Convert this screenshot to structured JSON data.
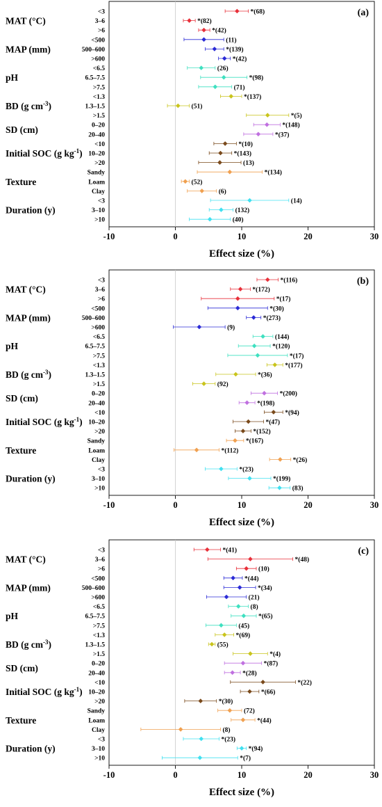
{
  "chart_data": [
    {
      "type": "forest",
      "panel": "(a)",
      "xlabel": "Effect size (%)",
      "xlim": [
        -10,
        30
      ],
      "xticks": [
        -10,
        0,
        10,
        20,
        30
      ],
      "groups": [
        {
          "label": "MAT (°C)",
          "color": "#e8303a",
          "rows": [
            {
              "cat": "<3",
              "mean": 9.3,
              "lo": 7.5,
              "hi": 11.0,
              "ann": "*(68)"
            },
            {
              "cat": "3–6",
              "mean": 2.1,
              "lo": 1.2,
              "hi": 3.0,
              "ann": "*(82)"
            },
            {
              "cat": ">6",
              "mean": 4.3,
              "lo": 3.5,
              "hi": 5.2,
              "ann": "*(42)"
            }
          ]
        },
        {
          "label": "MAP (mm)",
          "color": "#2b2bd6",
          "rows": [
            {
              "cat": "<500",
              "mean": 4.3,
              "lo": 1.3,
              "hi": 7.3,
              "ann": "(11)"
            },
            {
              "cat": "500–600",
              "mean": 5.9,
              "lo": 4.5,
              "hi": 7.3,
              "ann": "*(139)"
            },
            {
              "cat": ">600",
              "mean": 7.4,
              "lo": 6.5,
              "hi": 8.3,
              "ann": "*(42)"
            }
          ]
        },
        {
          "label": "pH",
          "color": "#3fe0c0",
          "rows": [
            {
              "cat": "<6.5",
              "mean": 3.9,
              "lo": 1.8,
              "hi": 6.0,
              "ann": "(26)"
            },
            {
              "cat": "6.5–7.5",
              "mean": 7.3,
              "lo": 3.8,
              "hi": 10.8,
              "ann": "*(98)"
            },
            {
              "cat": ">7.5",
              "mean": 6.0,
              "lo": 3.5,
              "hi": 8.5,
              "ann": "(71)"
            }
          ]
        },
        {
          "label": "BD (g cm<sup>-3</sup>)",
          "color": "#c9c41c",
          "rows": [
            {
              "cat": "<1.3",
              "mean": 8.4,
              "lo": 6.8,
              "hi": 10.0,
              "ann": "*(137)"
            },
            {
              "cat": "1.3–1.5",
              "mean": 0.4,
              "lo": -1.2,
              "hi": 2.1,
              "ann": "(51)"
            },
            {
              "cat": ">1.5",
              "mean": 13.9,
              "lo": 10.7,
              "hi": 17.1,
              "ann": "*(5)"
            }
          ]
        },
        {
          "label": "SD (cm)",
          "color": "#c070e0",
          "rows": [
            {
              "cat": "0–20",
              "mean": 13.8,
              "lo": 11.8,
              "hi": 15.8,
              "ann": "*(148)"
            },
            {
              "cat": "20–40",
              "mean": 12.5,
              "lo": 10.3,
              "hi": 14.7,
              "ann": "*(37)"
            }
          ]
        },
        {
          "label": "Initial SOC (g kg<sup>-1</sup>)",
          "color": "#7a4a1c",
          "rows": [
            {
              "cat": "<10",
              "mean": 7.5,
              "lo": 5.8,
              "hi": 9.2,
              "ann": "*(10)"
            },
            {
              "cat": "10–20",
              "mean": 6.8,
              "lo": 5.1,
              "hi": 8.5,
              "ann": "*(143)"
            },
            {
              "cat": ">20",
              "mean": 6.7,
              "lo": 3.5,
              "hi": 9.9,
              "ann": "(13)"
            }
          ]
        },
        {
          "label": "Texture",
          "color": "#f0a050",
          "rows": [
            {
              "cat": "Sandy",
              "mean": 8.2,
              "lo": 3.3,
              "hi": 13.1,
              "ann": "*(134)"
            },
            {
              "cat": "Loam",
              "mean": 1.5,
              "lo": 0.9,
              "hi": 2.1,
              "ann": "(52)"
            },
            {
              "cat": "Clay",
              "mean": 4.0,
              "lo": 1.8,
              "hi": 6.2,
              "ann": "(6)"
            }
          ]
        },
        {
          "label": "Duration (y)",
          "color": "#40e0f0",
          "rows": [
            {
              "cat": "<3",
              "mean": 11.2,
              "lo": 5.3,
              "hi": 17.1,
              "ann": "(14)"
            },
            {
              "cat": "3–10",
              "mean": 6.9,
              "lo": 5.1,
              "hi": 8.7,
              "ann": "(132)"
            },
            {
              "cat": ">10",
              "mean": 5.2,
              "lo": 2.1,
              "hi": 8.3,
              "ann": "(40)"
            }
          ]
        }
      ]
    },
    {
      "type": "forest",
      "panel": "(b)",
      "xlabel": "Effect size (%)",
      "xlim": [
        -10,
        30
      ],
      "xticks": [
        -10,
        0,
        10,
        20,
        30
      ],
      "groups": [
        {
          "label": "MAT (°C)",
          "color": "#e8303a",
          "rows": [
            {
              "cat": "<3",
              "mean": 13.9,
              "lo": 12.3,
              "hi": 15.5,
              "ann": "*(116)"
            },
            {
              "cat": "3–6",
              "mean": 9.8,
              "lo": 8.3,
              "hi": 11.3,
              "ann": "*(172)"
            },
            {
              "cat": ">6",
              "mean": 9.4,
              "lo": 3.9,
              "hi": 14.9,
              "ann": "*(17)"
            }
          ]
        },
        {
          "label": "MAP (mm)",
          "color": "#2b2bd6",
          "rows": [
            {
              "cat": "<500",
              "mean": 9.4,
              "lo": 4.9,
              "hi": 13.9,
              "ann": "*(30)"
            },
            {
              "cat": "500–600",
              "mean": 11.8,
              "lo": 10.7,
              "hi": 12.9,
              "ann": "*(273)"
            },
            {
              "cat": ">600",
              "mean": 3.6,
              "lo": -0.3,
              "hi": 7.5,
              "ann": "(9)"
            }
          ]
        },
        {
          "label": "pH",
          "color": "#3fe0c0",
          "rows": [
            {
              "cat": "<6.5",
              "mean": 13.2,
              "lo": 11.7,
              "hi": 14.7,
              "ann": "(144)"
            },
            {
              "cat": "6.5–7.5",
              "mean": 11.9,
              "lo": 9.5,
              "hi": 14.3,
              "ann": "*(120)"
            },
            {
              "cat": ">7.5",
              "mean": 12.4,
              "lo": 7.9,
              "hi": 16.9,
              "ann": "*(17)"
            }
          ]
        },
        {
          "label": "BD (g cm<sup>-3</sup>)",
          "color": "#c9c41c",
          "rows": [
            {
              "cat": "<1.3",
              "mean": 15.0,
              "lo": 13.8,
              "hi": 16.2,
              "ann": "*(177)"
            },
            {
              "cat": "1.3–1.5",
              "mean": 9.1,
              "lo": 6.1,
              "hi": 12.1,
              "ann": "*(36)"
            },
            {
              "cat": ">1.5",
              "mean": 4.3,
              "lo": 2.6,
              "hi": 6.0,
              "ann": "(92)"
            }
          ]
        },
        {
          "label": "SD (cm)",
          "color": "#c070e0",
          "rows": [
            {
              "cat": "0–20",
              "mean": 13.4,
              "lo": 11.4,
              "hi": 15.4,
              "ann": "*(200)"
            },
            {
              "cat": "20–40",
              "mean": 10.8,
              "lo": 9.6,
              "hi": 12.0,
              "ann": "*(198)"
            }
          ]
        },
        {
          "label": "Initial SOC (g kg<sup>-1</sup>)",
          "color": "#7a4a1c",
          "rows": [
            {
              "cat": "<10",
              "mean": 14.8,
              "lo": 13.4,
              "hi": 16.2,
              "ann": "*(94)"
            },
            {
              "cat": "10–20",
              "mean": 11.0,
              "lo": 8.7,
              "hi": 13.3,
              "ann": "*(47)"
            },
            {
              "cat": ">20",
              "mean": 10.2,
              "lo": 9.0,
              "hi": 11.4,
              "ann": "*(152)"
            }
          ]
        },
        {
          "label": "Texture",
          "color": "#f0a050",
          "rows": [
            {
              "cat": "Sandy",
              "mean": 9.0,
              "lo": 7.7,
              "hi": 10.3,
              "ann": "*(167)"
            },
            {
              "cat": "Loam",
              "mean": 3.2,
              "lo": -0.2,
              "hi": 6.6,
              "ann": "*(112)"
            },
            {
              "cat": "Clay",
              "mean": 15.8,
              "lo": 14.2,
              "hi": 17.4,
              "ann": "*(26)"
            }
          ]
        },
        {
          "label": "Duration (y)",
          "color": "#40e0f0",
          "rows": [
            {
              "cat": "<3",
              "mean": 6.9,
              "lo": 4.5,
              "hi": 9.3,
              "ann": "*(23)"
            },
            {
              "cat": "3–10",
              "mean": 11.2,
              "lo": 8.0,
              "hi": 14.4,
              "ann": "*(199)"
            },
            {
              "cat": ">10",
              "mean": 15.7,
              "lo": 14.1,
              "hi": 17.3,
              "ann": "(83)"
            }
          ]
        }
      ]
    },
    {
      "type": "forest",
      "panel": "(c)",
      "xlabel": "Effect size (%)",
      "xlim": [
        -10,
        30
      ],
      "xticks": [
        -10,
        0,
        10,
        20,
        30
      ],
      "groups": [
        {
          "label": "MAT (°C)",
          "color": "#e8303a",
          "rows": [
            {
              "cat": "<3",
              "mean": 4.8,
              "lo": 2.8,
              "hi": 6.8,
              "ann": "*(41)"
            },
            {
              "cat": "3–6",
              "mean": 11.3,
              "lo": 4.9,
              "hi": 17.7,
              "ann": "*(48)"
            },
            {
              "cat": ">6",
              "mean": 10.7,
              "lo": 9.2,
              "hi": 12.2,
              "ann": "(10)"
            }
          ]
        },
        {
          "label": "MAP (mm)",
          "color": "#2b2bd6",
          "rows": [
            {
              "cat": "<500",
              "mean": 8.7,
              "lo": 7.3,
              "hi": 10.1,
              "ann": "*(44)"
            },
            {
              "cat": "500–600",
              "mean": 9.7,
              "lo": 7.3,
              "hi": 12.1,
              "ann": "*(34)"
            },
            {
              "cat": ">600",
              "mean": 7.7,
              "lo": 4.7,
              "hi": 10.7,
              "ann": "(21)"
            }
          ]
        },
        {
          "label": "pH",
          "color": "#3fe0c0",
          "rows": [
            {
              "cat": "<6.5",
              "mean": 9.5,
              "lo": 8.0,
              "hi": 11.0,
              "ann": "(8)"
            },
            {
              "cat": "6.5–7.5",
              "mean": 10.3,
              "lo": 8.4,
              "hi": 12.2,
              "ann": "*(65)"
            },
            {
              "cat": ">7.5",
              "mean": 6.9,
              "lo": 4.6,
              "hi": 9.2,
              "ann": "(45)"
            }
          ]
        },
        {
          "label": "BD (g cm<sup>-3</sup>)",
          "color": "#c9c41c",
          "rows": [
            {
              "cat": "<1.3",
              "mean": 7.4,
              "lo": 6.0,
              "hi": 8.8,
              "ann": "*(69)"
            },
            {
              "cat": "1.3–1.5",
              "mean": 5.5,
              "lo": 5.0,
              "hi": 6.0,
              "ann": "(55)"
            },
            {
              "cat": ">1.5",
              "mean": 11.3,
              "lo": 8.7,
              "hi": 13.9,
              "ann": "*(4)"
            }
          ]
        },
        {
          "label": "SD (cm)",
          "color": "#c070e0",
          "rows": [
            {
              "cat": "0–20",
              "mean": 10.2,
              "lo": 7.4,
              "hi": 13.0,
              "ann": "*(87)"
            },
            {
              "cat": "20–40",
              "mean": 8.6,
              "lo": 7.4,
              "hi": 9.8,
              "ann": "*(28)"
            }
          ]
        },
        {
          "label": "Initial SOC (g kg<sup>-1</sup>)",
          "color": "#7a4a1c",
          "rows": [
            {
              "cat": "<10",
              "mean": 13.2,
              "lo": 8.3,
              "hi": 18.1,
              "ann": "*(22)"
            },
            {
              "cat": "10–20",
              "mean": 11.2,
              "lo": 9.8,
              "hi": 12.6,
              "ann": "*(66)"
            },
            {
              "cat": ">20",
              "mean": 3.8,
              "lo": 1.4,
              "hi": 6.2,
              "ann": "*(30)"
            }
          ]
        },
        {
          "label": "Texture",
          "color": "#f0a050",
          "rows": [
            {
              "cat": "Sandy",
              "mean": 8.2,
              "lo": 6.4,
              "hi": 10.0,
              "ann": "(72)"
            },
            {
              "cat": "Loam",
              "mean": 10.2,
              "lo": 8.4,
              "hi": 12.0,
              "ann": "*(44)"
            },
            {
              "cat": "Clay",
              "mean": 0.8,
              "lo": -5.2,
              "hi": 6.8,
              "ann": "(8)"
            }
          ]
        },
        {
          "label": "Duration (y)",
          "color": "#40e0f0",
          "rows": [
            {
              "cat": "<3",
              "mean": 3.9,
              "lo": 1.2,
              "hi": 6.6,
              "ann": "*(23)"
            },
            {
              "cat": "3–10",
              "mean": 10.0,
              "lo": 9.3,
              "hi": 10.7,
              "ann": "*(94)"
            },
            {
              "cat": ">10",
              "mean": 3.7,
              "lo": -2.0,
              "hi": 9.4,
              "ann": "*(7)"
            }
          ]
        }
      ]
    }
  ]
}
